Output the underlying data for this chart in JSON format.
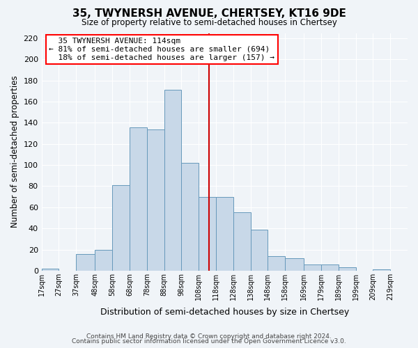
{
  "title": "35, TWYNERSH AVENUE, CHERTSEY, KT16 9DE",
  "subtitle": "Size of property relative to semi-detached houses in Chertsey",
  "xlabel": "Distribution of semi-detached houses by size in Chertsey",
  "ylabel": "Number of semi-detached properties",
  "bin_labels": [
    "17sqm",
    "27sqm",
    "37sqm",
    "48sqm",
    "58sqm",
    "68sqm",
    "78sqm",
    "88sqm",
    "98sqm",
    "108sqm",
    "118sqm",
    "128sqm",
    "138sqm",
    "148sqm",
    "158sqm",
    "169sqm",
    "179sqm",
    "189sqm",
    "199sqm",
    "209sqm",
    "219sqm"
  ],
  "bar_values": [
    2,
    0,
    16,
    20,
    81,
    136,
    134,
    171,
    102,
    70,
    70,
    55,
    39,
    14,
    12,
    6,
    6,
    3,
    0,
    1
  ],
  "bar_color": "#c8d8e8",
  "bar_edge_color": "#6699bb",
  "ylim": [
    0,
    225
  ],
  "yticks": [
    0,
    20,
    40,
    60,
    80,
    100,
    120,
    140,
    160,
    180,
    200,
    220
  ],
  "property_size": 114,
  "property_label": "35 TWYNERSH AVENUE: 114sqm",
  "pct_smaller": 81,
  "pct_smaller_count": 694,
  "pct_larger": 18,
  "pct_larger_count": 157,
  "background_color": "#f0f4f8",
  "grid_color": "#ffffff",
  "annotation_line_color": "#cc0000",
  "footer1": "Contains HM Land Registry data © Crown copyright and database right 2024.",
  "footer2": "Contains public sector information licensed under the Open Government Licence v3.0."
}
